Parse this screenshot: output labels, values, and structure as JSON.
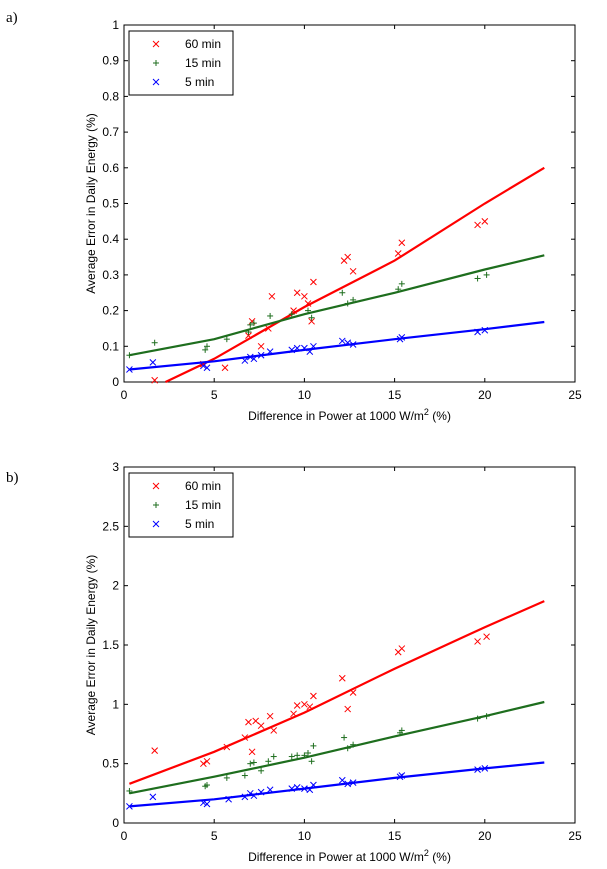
{
  "chart_data": [
    {
      "type": "scatter",
      "panel_label": "a)",
      "xlabel_main": "Difference in Power at 1000 W/m",
      "xlabel_sup": "2",
      "xlabel_tail": " (%)",
      "ylabel": "Average Error in Daily Energy (%)",
      "xlim": [
        0,
        25
      ],
      "ylim": [
        0,
        1
      ],
      "xticks": [
        0,
        5,
        10,
        15,
        20,
        25
      ],
      "yticks": [
        0,
        0.1,
        0.2,
        0.3,
        0.4,
        0.5,
        0.6,
        0.7,
        0.8,
        0.9,
        1
      ],
      "legend_position": "top-left",
      "series": [
        {
          "name": "60 min",
          "marker": "x",
          "color": "#ff0000",
          "points": [
            [
              1.7,
              0.005
            ],
            [
              4.4,
              0.05
            ],
            [
              5.6,
              0.04
            ],
            [
              6.9,
              0.13
            ],
            [
              7.1,
              0.17
            ],
            [
              7.6,
              0.1
            ],
            [
              8.0,
              0.15
            ],
            [
              8.2,
              0.24
            ],
            [
              9.4,
              0.2
            ],
            [
              9.6,
              0.25
            ],
            [
              10.0,
              0.24
            ],
            [
              10.2,
              0.22
            ],
            [
              10.4,
              0.17
            ],
            [
              10.5,
              0.28
            ],
            [
              12.2,
              0.34
            ],
            [
              12.4,
              0.35
            ],
            [
              12.7,
              0.31
            ],
            [
              15.2,
              0.36
            ],
            [
              15.4,
              0.39
            ],
            [
              19.6,
              0.44
            ],
            [
              20.0,
              0.45
            ]
          ],
          "fit": [
            [
              2.3,
              0.0
            ],
            [
              5,
              0.065
            ],
            [
              10,
              0.21
            ],
            [
              15,
              0.34
            ],
            [
              20,
              0.5
            ],
            [
              23.3,
              0.6
            ]
          ]
        },
        {
          "name": "15 min",
          "marker": "+",
          "color": "#1e6e1e",
          "points": [
            [
              0.3,
              0.075
            ],
            [
              1.7,
              0.11
            ],
            [
              4.5,
              0.09
            ],
            [
              4.6,
              0.1
            ],
            [
              5.7,
              0.12
            ],
            [
              6.9,
              0.14
            ],
            [
              7.0,
              0.16
            ],
            [
              7.2,
              0.165
            ],
            [
              8.1,
              0.185
            ],
            [
              9.3,
              0.19
            ],
            [
              10.2,
              0.2
            ],
            [
              10.4,
              0.18
            ],
            [
              12.1,
              0.25
            ],
            [
              12.4,
              0.22
            ],
            [
              12.7,
              0.23
            ],
            [
              15.2,
              0.26
            ],
            [
              15.4,
              0.275
            ],
            [
              19.6,
              0.29
            ],
            [
              20.1,
              0.3
            ]
          ],
          "fit": [
            [
              0.3,
              0.075
            ],
            [
              5,
              0.12
            ],
            [
              10,
              0.19
            ],
            [
              15,
              0.25
            ],
            [
              20,
              0.315
            ],
            [
              23.3,
              0.355
            ]
          ]
        },
        {
          "name": "5 min",
          "marker": "x",
          "color": "#0000ff",
          "points": [
            [
              0.3,
              0.035
            ],
            [
              1.6,
              0.055
            ],
            [
              4.4,
              0.045
            ],
            [
              4.6,
              0.04
            ],
            [
              6.7,
              0.06
            ],
            [
              7.0,
              0.07
            ],
            [
              7.2,
              0.065
            ],
            [
              7.6,
              0.075
            ],
            [
              8.1,
              0.085
            ],
            [
              9.3,
              0.09
            ],
            [
              9.6,
              0.095
            ],
            [
              10.0,
              0.095
            ],
            [
              10.3,
              0.085
            ],
            [
              10.5,
              0.1
            ],
            [
              12.1,
              0.115
            ],
            [
              12.4,
              0.11
            ],
            [
              12.7,
              0.105
            ],
            [
              15.3,
              0.12
            ],
            [
              15.4,
              0.125
            ],
            [
              19.6,
              0.14
            ],
            [
              20.0,
              0.145
            ]
          ],
          "fit": [
            [
              0.3,
              0.035
            ],
            [
              5,
              0.058
            ],
            [
              10,
              0.09
            ],
            [
              15,
              0.12
            ],
            [
              20,
              0.148
            ],
            [
              23.3,
              0.168
            ]
          ]
        }
      ]
    },
    {
      "type": "scatter",
      "panel_label": "b)",
      "xlabel_main": "Difference in Power at 1000 W/m",
      "xlabel_sup": "2",
      "xlabel_tail": " (%)",
      "ylabel": "Average Error in Daily Energy (%)",
      "xlim": [
        0,
        25
      ],
      "ylim": [
        0,
        3
      ],
      "xticks": [
        0,
        5,
        10,
        15,
        20,
        25
      ],
      "yticks": [
        0,
        0.5,
        1,
        1.5,
        2,
        2.5,
        3
      ],
      "legend_position": "top-left",
      "series": [
        {
          "name": "60 min",
          "marker": "x",
          "color": "#ff0000",
          "points": [
            [
              1.7,
              0.61
            ],
            [
              4.4,
              0.5
            ],
            [
              4.6,
              0.52
            ],
            [
              5.7,
              0.64
            ],
            [
              6.7,
              0.72
            ],
            [
              6.9,
              0.85
            ],
            [
              7.1,
              0.6
            ],
            [
              7.3,
              0.86
            ],
            [
              7.6,
              0.82
            ],
            [
              8.1,
              0.9
            ],
            [
              8.3,
              0.78
            ],
            [
              9.4,
              0.92
            ],
            [
              9.6,
              0.99
            ],
            [
              10.0,
              1.0
            ],
            [
              10.3,
              0.98
            ],
            [
              10.5,
              1.07
            ],
            [
              12.1,
              1.22
            ],
            [
              12.4,
              0.96
            ],
            [
              12.7,
              1.1
            ],
            [
              15.2,
              1.44
            ],
            [
              15.4,
              1.47
            ],
            [
              19.6,
              1.53
            ],
            [
              20.1,
              1.57
            ]
          ],
          "fit": [
            [
              0.3,
              0.33
            ],
            [
              5,
              0.6
            ],
            [
              10,
              0.93
            ],
            [
              15,
              1.3
            ],
            [
              20,
              1.65
            ],
            [
              23.3,
              1.87
            ]
          ]
        },
        {
          "name": "15 min",
          "marker": "+",
          "color": "#1e6e1e",
          "points": [
            [
              0.3,
              0.27
            ],
            [
              4.5,
              0.31
            ],
            [
              4.6,
              0.32
            ],
            [
              5.7,
              0.38
            ],
            [
              6.7,
              0.4
            ],
            [
              7.0,
              0.5
            ],
            [
              7.2,
              0.51
            ],
            [
              7.6,
              0.44
            ],
            [
              8.0,
              0.52
            ],
            [
              8.3,
              0.56
            ],
            [
              9.3,
              0.56
            ],
            [
              9.6,
              0.57
            ],
            [
              10.0,
              0.57
            ],
            [
              10.2,
              0.59
            ],
            [
              10.4,
              0.52
            ],
            [
              10.5,
              0.65
            ],
            [
              12.2,
              0.72
            ],
            [
              12.4,
              0.63
            ],
            [
              12.7,
              0.66
            ],
            [
              15.3,
              0.76
            ],
            [
              15.4,
              0.78
            ],
            [
              19.6,
              0.88
            ],
            [
              20.1,
              0.9
            ]
          ],
          "fit": [
            [
              0.3,
              0.25
            ],
            [
              5,
              0.39
            ],
            [
              10,
              0.55
            ],
            [
              15,
              0.73
            ],
            [
              20,
              0.9
            ],
            [
              23.3,
              1.02
            ]
          ]
        },
        {
          "name": "5 min",
          "marker": "x",
          "color": "#0000ff",
          "points": [
            [
              0.3,
              0.14
            ],
            [
              1.6,
              0.22
            ],
            [
              4.4,
              0.17
            ],
            [
              4.6,
              0.16
            ],
            [
              5.8,
              0.2
            ],
            [
              6.7,
              0.22
            ],
            [
              7.0,
              0.25
            ],
            [
              7.2,
              0.23
            ],
            [
              7.6,
              0.26
            ],
            [
              8.1,
              0.28
            ],
            [
              9.3,
              0.29
            ],
            [
              9.6,
              0.3
            ],
            [
              10.0,
              0.29
            ],
            [
              10.3,
              0.28
            ],
            [
              10.5,
              0.32
            ],
            [
              12.1,
              0.36
            ],
            [
              12.4,
              0.33
            ],
            [
              12.7,
              0.34
            ],
            [
              15.3,
              0.39
            ],
            [
              15.4,
              0.4
            ],
            [
              19.6,
              0.45
            ],
            [
              20.0,
              0.46
            ]
          ],
          "fit": [
            [
              0.3,
              0.14
            ],
            [
              5,
              0.2
            ],
            [
              10,
              0.29
            ],
            [
              15,
              0.38
            ],
            [
              20,
              0.46
            ],
            [
              23.3,
              0.51
            ]
          ]
        }
      ]
    }
  ]
}
